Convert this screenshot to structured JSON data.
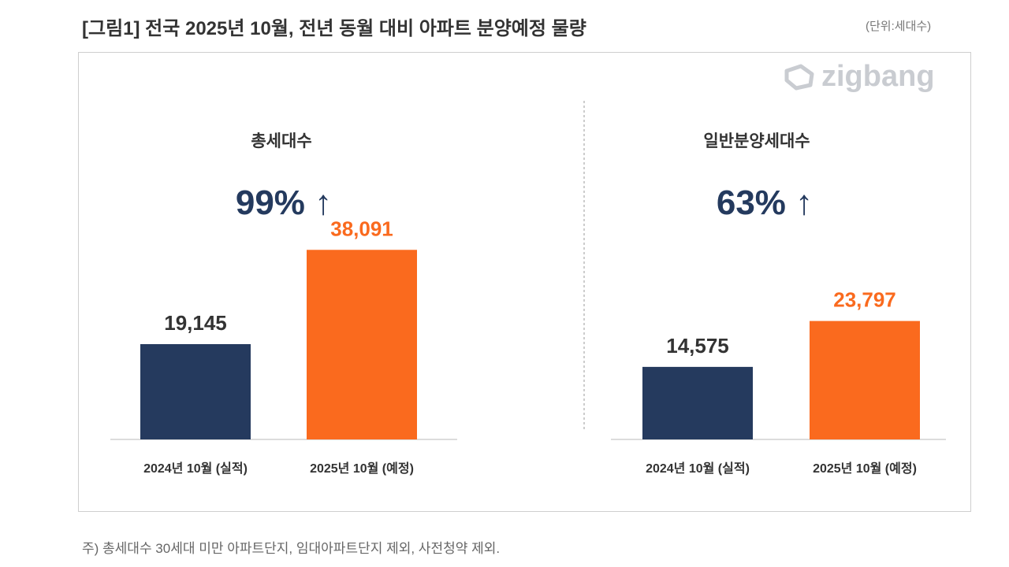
{
  "title": "[그림1] 전국 2025년 10월, 전년 동월 대비 아파트 분양예정 물량",
  "unit": "(단위:세대수)",
  "logo": "zigbang",
  "note": "주) 총세대수 30세대 미만 아파트단지, 임대아파트단지 제외, 사전청약 제외.",
  "colors": {
    "actual": "#253a5e",
    "planned": "#fa6a1e"
  },
  "chart_data": [
    {
      "type": "bar",
      "title": "총세대수",
      "change": "99% ↑",
      "categories": [
        "2024년 10월 (실적)",
        "2025년 10월 (예정)"
      ],
      "values": [
        19145,
        38091
      ],
      "value_labels": [
        "19,145",
        "38,091"
      ]
    },
    {
      "type": "bar",
      "title": "일반분양세대수",
      "change": "63% ↑",
      "categories": [
        "2024년 10월 (실적)",
        "2025년 10월 (예정)"
      ],
      "values": [
        14575,
        23797
      ],
      "value_labels": [
        "14,575",
        "23,797"
      ]
    }
  ]
}
